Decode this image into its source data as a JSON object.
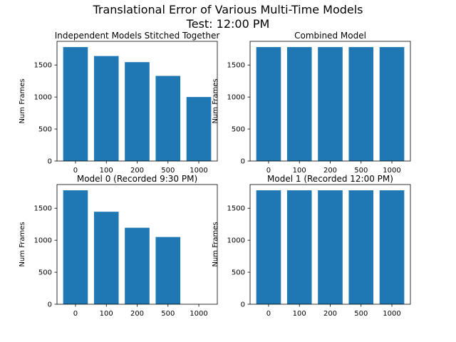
{
  "figure": {
    "title_line1": "Translational Error of Various Multi-Time Models",
    "title_line2": "Test: 12:00 PM"
  },
  "chart_data": [
    {
      "type": "bar",
      "title": "Independent Models Stitched Together",
      "categories": [
        "0",
        "100",
        "200",
        "500",
        "1000"
      ],
      "values": [
        1780,
        1640,
        1545,
        1330,
        1000
      ],
      "xlabel": "",
      "ylabel": "Num Frames",
      "ylim": [
        0,
        1870
      ],
      "yticks": [
        0,
        500,
        1000,
        1500
      ],
      "color": "#1f77b4",
      "grid": false
    },
    {
      "type": "bar",
      "title": "Combined Model",
      "categories": [
        "0",
        "100",
        "200",
        "500",
        "1000"
      ],
      "values": [
        1780,
        1780,
        1780,
        1780,
        1780
      ],
      "xlabel": "",
      "ylabel": "Num Frames",
      "ylim": [
        0,
        1870
      ],
      "yticks": [
        0,
        500,
        1000,
        1500
      ],
      "color": "#1f77b4",
      "grid": false
    },
    {
      "type": "bar",
      "title": "Model 0 (Recorded 9:30 PM)",
      "categories": [
        "0",
        "100",
        "200",
        "500",
        "1000"
      ],
      "values": [
        1780,
        1445,
        1195,
        1050,
        0
      ],
      "xlabel": "",
      "ylabel": "Num Frames",
      "ylim": [
        0,
        1870
      ],
      "yticks": [
        0,
        500,
        1000,
        1500
      ],
      "color": "#1f77b4",
      "grid": false
    },
    {
      "type": "bar",
      "title": "Model 1 (Recorded 12:00 PM)",
      "categories": [
        "0",
        "100",
        "200",
        "500",
        "1000"
      ],
      "values": [
        1780,
        1780,
        1780,
        1780,
        1780
      ],
      "xlabel": "",
      "ylabel": "Num Frames",
      "ylim": [
        0,
        1870
      ],
      "yticks": [
        0,
        500,
        1000,
        1500
      ],
      "color": "#1f77b4",
      "grid": false
    }
  ]
}
